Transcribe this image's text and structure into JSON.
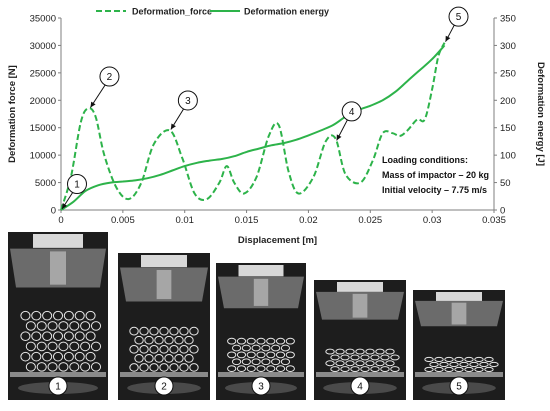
{
  "chart_data": {
    "type": "line",
    "x_axis": {
      "label": "Displacement [m]",
      "range": [
        0,
        0.035
      ],
      "ticks": [
        "0",
        "0.005",
        "0.01",
        "0.015",
        "0.02",
        "0.025",
        "0.03",
        "0.035"
      ]
    },
    "y_left": {
      "label": "Deformation force [N]",
      "range": [
        0,
        35000
      ],
      "ticks": [
        "0",
        "5000",
        "10000",
        "15000",
        "20000",
        "25000",
        "30000",
        "35000"
      ]
    },
    "y_right": {
      "label": "Deformation energy [J]",
      "range": [
        0,
        350
      ],
      "ticks": [
        "0",
        "50",
        "100",
        "150",
        "200",
        "250",
        "300",
        "350"
      ]
    },
    "grid": false,
    "legend_position": "top",
    "series": [
      {
        "name": "Deformation_force",
        "axis": "left",
        "style": "dashed",
        "color": "#2db34a",
        "x": [
          0,
          0.0008,
          0.0016,
          0.0022,
          0.0028,
          0.0035,
          0.0045,
          0.0055,
          0.0065,
          0.0075,
          0.0088,
          0.0098,
          0.0108,
          0.0118,
          0.0128,
          0.0134,
          0.014,
          0.0148,
          0.0158,
          0.0168,
          0.0176,
          0.0184,
          0.0192,
          0.0204,
          0.0214,
          0.0222,
          0.023,
          0.0242,
          0.0252,
          0.026,
          0.0268,
          0.0274,
          0.028,
          0.0288,
          0.0294,
          0.03,
          0.0305,
          0.031
        ],
        "y": [
          0,
          6000,
          16000,
          18500,
          17000,
          10000,
          4000,
          2000,
          5000,
          12000,
          14500,
          9500,
          3000,
          2000,
          5000,
          8000,
          5000,
          3000,
          6000,
          13500,
          15500,
          7000,
          3000,
          6000,
          12500,
          13000,
          6500,
          5000,
          9000,
          14000,
          14000,
          13500,
          14500,
          16500,
          16500,
          22000,
          28000,
          30500
        ]
      },
      {
        "name": "Deformation energy",
        "axis": "right",
        "style": "solid",
        "color": "#2db34a",
        "x": [
          0,
          0.001,
          0.002,
          0.003,
          0.004,
          0.005,
          0.006,
          0.007,
          0.008,
          0.009,
          0.01,
          0.011,
          0.012,
          0.013,
          0.014,
          0.015,
          0.016,
          0.017,
          0.018,
          0.019,
          0.02,
          0.021,
          0.022,
          0.023,
          0.024,
          0.025,
          0.026,
          0.027,
          0.028,
          0.029,
          0.03,
          0.031
        ],
        "y": [
          0,
          15,
          35,
          45,
          50,
          52,
          54,
          58,
          64,
          72,
          80,
          86,
          90,
          93,
          98,
          106,
          112,
          118,
          122,
          128,
          136,
          145,
          155,
          170,
          182,
          190,
          200,
          215,
          235,
          255,
          275,
          300
        ]
      }
    ],
    "annotations": [
      {
        "label": "1",
        "x": 0.0,
        "y": 0
      },
      {
        "label": "2",
        "x": 0.0023,
        "y": 18500
      },
      {
        "label": "3",
        "x": 0.0088,
        "y": 14500
      },
      {
        "label": "4",
        "x": 0.0222,
        "y": 12500
      },
      {
        "label": "5",
        "x": 0.031,
        "y": 30500
      }
    ],
    "note_lines": [
      "Loading conditions:",
      "Mass of impactor – 20 kg",
      "Initial velocity – 7.75 m/s"
    ]
  },
  "photos": [
    {
      "label": "1",
      "stage": 0.0
    },
    {
      "label": "2",
      "stage": 0.25
    },
    {
      "label": "3",
      "stage": 0.5
    },
    {
      "label": "4",
      "stage": 0.75
    },
    {
      "label": "5",
      "stage": 1.0
    }
  ],
  "colors": {
    "series": "#2db34a",
    "axis": "#7f7f7f",
    "text": "#222222"
  }
}
